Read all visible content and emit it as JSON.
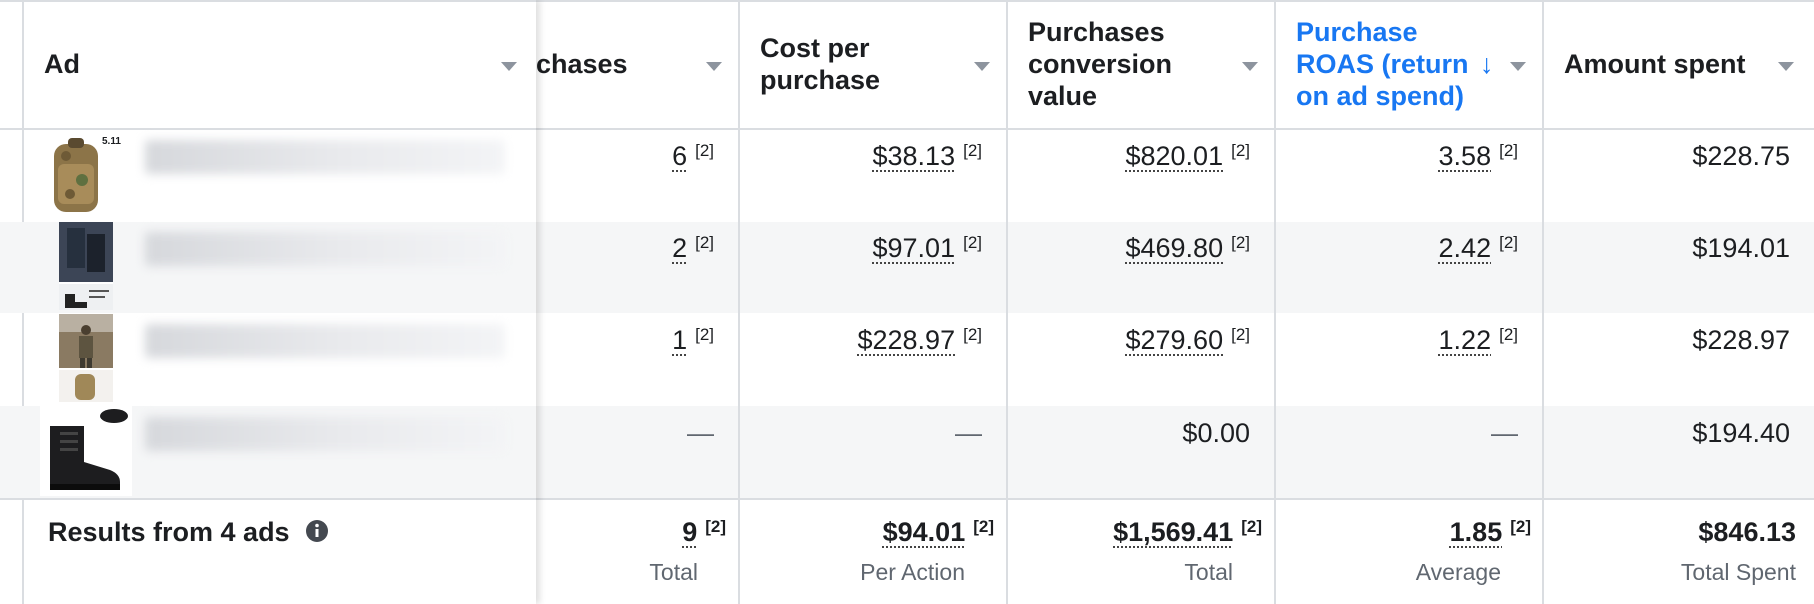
{
  "columns": {
    "ad": "Ad",
    "purchases": "chases",
    "cost_per_purchase": [
      "Cost per",
      "purchase"
    ],
    "conversion_value": [
      "Purchases",
      "conversion",
      "value"
    ],
    "roas": [
      "Purchase",
      "ROAS (return",
      "on ad spend)"
    ],
    "roas_sort_arrow": "↓",
    "amount_spent": "Amount spent"
  },
  "rows": [
    {
      "thumb": "backpack",
      "brand": "5.11",
      "purchases": "6",
      "cost": "$38.13",
      "value": "$820.01",
      "roas": "3.58",
      "spent": "$228.75"
    },
    {
      "thumb": "boots-collage",
      "purchases": "2",
      "cost": "$97.01",
      "value": "$469.80",
      "roas": "2.42",
      "spent": "$194.01"
    },
    {
      "thumb": "soldier-collage",
      "purchases": "1",
      "cost": "$228.97",
      "value": "$279.60",
      "roas": "1.22",
      "spent": "$228.97"
    },
    {
      "thumb": "black-boot",
      "purchases": "—",
      "cost": "—",
      "value": "$0.00",
      "roas": "—",
      "spent": "$194.40"
    }
  ],
  "footnote_marker": "[2]",
  "summary": {
    "label": "Results from 4 ads",
    "purchases": "9",
    "purchases_sub": "Total",
    "cost": "$94.01",
    "cost_sub": "Per Action",
    "value": "$1,569.41",
    "value_sub": "Total",
    "roas": "1.85",
    "roas_sub": "Average",
    "spent": "$846.13",
    "spent_sub": "Total Spent"
  },
  "icons": {
    "info": "info-circle-icon",
    "sort_caret": "caret-down-icon",
    "sort_arrow": "arrow-down-icon"
  },
  "colors": {
    "accent": "#1877f2",
    "row_alt": "#f5f6f7",
    "border": "#dadde1"
  }
}
